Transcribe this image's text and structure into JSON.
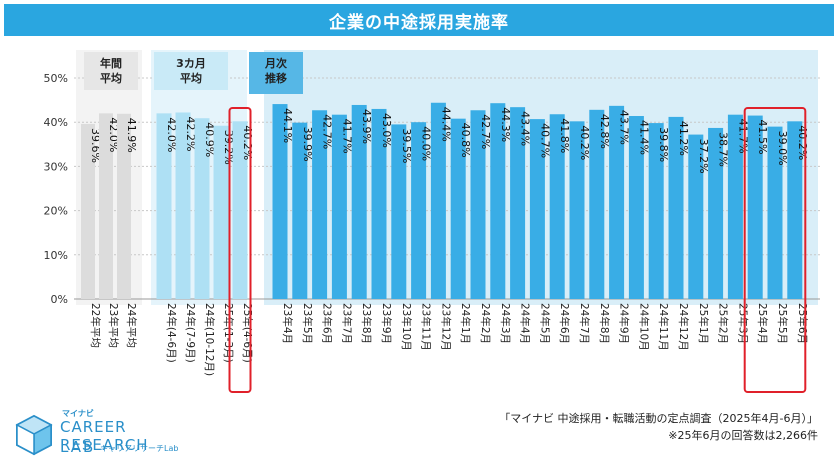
{
  "title": "企業の中途採用実施率",
  "groups": [
    {
      "label": "年間\n平均"
    },
    {
      "label": "3カ月\n平均"
    },
    {
      "label": "月次\n推移"
    }
  ],
  "colors": {
    "header": "#2aa6e0",
    "annual": "#dcdcdc",
    "quarterly": "#aee0f4",
    "monthly": "#39ade6",
    "highlight": "#e0202a",
    "groupbox_annual": "#e6e6e6",
    "groupbox_quarterly": "#c9eaf7",
    "groupbox_monthly": "#56b7e6"
  },
  "chart_data": {
    "type": "bar",
    "ylim": [
      0,
      50
    ],
    "yticks": [
      "0%",
      "10%",
      "20%",
      "30%",
      "40%",
      "50%"
    ],
    "categories": [
      "22年平均",
      "23年平均",
      "24年平均",
      "24年(4-6月)",
      "24年(7-9月)",
      "24年(10-12月)",
      "25年(1-3月)",
      "25年(4-6月)",
      "23年4月",
      "23年5月",
      "23年6月",
      "23年7月",
      "23年8月",
      "23年9月",
      "23年10月",
      "23年11月",
      "23年12月",
      "24年1月",
      "24年2月",
      "24年3月",
      "24年4月",
      "24年5月",
      "24年6月",
      "24年7月",
      "24年8月",
      "24年9月",
      "24年10月",
      "24年11月",
      "24年12月",
      "25年1月",
      "25年2月",
      "25年3月",
      "25年4月",
      "25年5月",
      "25年6月"
    ],
    "values": [
      39.6,
      42.0,
      41.9,
      42.0,
      42.2,
      40.9,
      39.2,
      40.2,
      44.1,
      39.9,
      42.7,
      41.7,
      43.9,
      43.0,
      39.5,
      40.0,
      44.4,
      40.8,
      42.7,
      44.3,
      43.4,
      40.7,
      41.8,
      40.2,
      42.8,
      43.7,
      41.4,
      39.8,
      41.2,
      37.2,
      38.7,
      41.7,
      41.5,
      39.0,
      40.2
    ],
    "value_labels": [
      "39.6%",
      "42.0%",
      "41.9%",
      "42.0%",
      "42.2%",
      "40.9%",
      "39.2%",
      "40.2%",
      "44.1%",
      "39.9%",
      "42.7%",
      "41.7%",
      "43.9%",
      "43.0%",
      "39.5%",
      "40.0%",
      "44.4%",
      "40.8%",
      "42.7%",
      "44.3%",
      "43.4%",
      "40.7%",
      "41.8%",
      "40.2%",
      "42.8%",
      "43.7%",
      "41.4%",
      "39.8%",
      "41.2%",
      "37.2%",
      "38.7%",
      "41.7%",
      "41.5%",
      "39.0%",
      "40.2%"
    ],
    "grid": true
  },
  "logo": {
    "small": "マイナビ",
    "main": "CAREER RESEARCH",
    "lab": "LAB",
    "sub": "キャリアリサーチLab"
  },
  "source": {
    "line1": "「マイナビ 中途採用・転職活動の定点調査（2025年4月-6月）」",
    "line2": "※25年6月の回答数は2,266件"
  }
}
